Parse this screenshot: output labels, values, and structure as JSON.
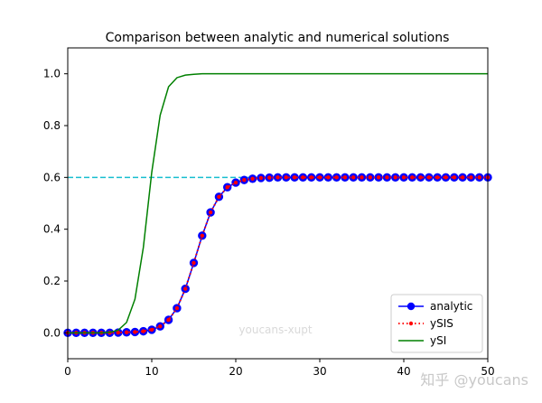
{
  "chart_data": {
    "type": "line",
    "title": "Comparison between analytic and numerical solutions",
    "xlabel": "",
    "ylabel": "",
    "xlim": [
      0,
      50
    ],
    "ylim": [
      -0.1,
      1.1
    ],
    "x_ticks": [
      0,
      10,
      20,
      30,
      40,
      50
    ],
    "x_tick_labels": [
      "0",
      "10",
      "20",
      "30",
      "40",
      "50"
    ],
    "y_ticks": [
      0.0,
      0.2,
      0.4,
      0.6,
      0.8,
      1.0
    ],
    "y_tick_labels": [
      "0.0",
      "0.2",
      "0.4",
      "0.6",
      "0.8",
      "1.0"
    ],
    "grid": false,
    "legend_position": "lower-right",
    "reference_line": {
      "y": 0.6,
      "color": "#17becf",
      "style": "dashed"
    },
    "series": [
      {
        "name": "analytic",
        "color": "#0000ff",
        "style": "solid-with-circle-markers",
        "x": [
          0,
          1,
          2,
          3,
          4,
          5,
          6,
          7,
          8,
          9,
          10,
          11,
          12,
          13,
          14,
          15,
          16,
          17,
          18,
          19,
          20,
          21,
          22,
          23,
          24,
          25,
          26,
          27,
          28,
          29,
          30,
          31,
          32,
          33,
          34,
          35,
          36,
          37,
          38,
          39,
          40,
          41,
          42,
          43,
          44,
          45,
          46,
          47,
          48,
          49,
          50
        ],
        "y": [
          0.0,
          0.0,
          0.0,
          0.0,
          0.0,
          0.0,
          0.001,
          0.002,
          0.003,
          0.006,
          0.012,
          0.025,
          0.05,
          0.095,
          0.17,
          0.27,
          0.375,
          0.465,
          0.525,
          0.562,
          0.58,
          0.59,
          0.595,
          0.598,
          0.599,
          0.6,
          0.6,
          0.6,
          0.6,
          0.6,
          0.6,
          0.6,
          0.6,
          0.6,
          0.6,
          0.6,
          0.6,
          0.6,
          0.6,
          0.6,
          0.6,
          0.6,
          0.6,
          0.6,
          0.6,
          0.6,
          0.6,
          0.6,
          0.6,
          0.6,
          0.6
        ]
      },
      {
        "name": "ySIS",
        "color": "#ff0000",
        "style": "dotted-with-small-markers",
        "x": [
          0,
          1,
          2,
          3,
          4,
          5,
          6,
          7,
          8,
          9,
          10,
          11,
          12,
          13,
          14,
          15,
          16,
          17,
          18,
          19,
          20,
          21,
          22,
          23,
          24,
          25,
          26,
          27,
          28,
          29,
          30,
          31,
          32,
          33,
          34,
          35,
          36,
          37,
          38,
          39,
          40,
          41,
          42,
          43,
          44,
          45,
          46,
          47,
          48,
          49,
          50
        ],
        "y": [
          0.0,
          0.0,
          0.0,
          0.0,
          0.0,
          0.0,
          0.001,
          0.002,
          0.003,
          0.006,
          0.012,
          0.025,
          0.05,
          0.095,
          0.17,
          0.27,
          0.375,
          0.465,
          0.525,
          0.562,
          0.58,
          0.59,
          0.595,
          0.598,
          0.599,
          0.6,
          0.6,
          0.6,
          0.6,
          0.6,
          0.6,
          0.6,
          0.6,
          0.6,
          0.6,
          0.6,
          0.6,
          0.6,
          0.6,
          0.6,
          0.6,
          0.6,
          0.6,
          0.6,
          0.6,
          0.6,
          0.6,
          0.6,
          0.6,
          0.6,
          0.6
        ]
      },
      {
        "name": "ySI",
        "color": "#008000",
        "style": "solid",
        "x": [
          0,
          1,
          2,
          3,
          4,
          5,
          6,
          7,
          8,
          9,
          10,
          11,
          12,
          13,
          14,
          15,
          16,
          17,
          18,
          19,
          20,
          21,
          22,
          23,
          24,
          25,
          26,
          27,
          28,
          29,
          30,
          31,
          32,
          33,
          34,
          35,
          36,
          37,
          38,
          39,
          40,
          41,
          42,
          43,
          44,
          45,
          46,
          47,
          48,
          49,
          50
        ],
        "y": [
          0.0,
          0.0,
          0.0,
          0.0,
          0.0,
          0.002,
          0.01,
          0.04,
          0.13,
          0.33,
          0.62,
          0.84,
          0.95,
          0.985,
          0.995,
          0.998,
          1.0,
          1.0,
          1.0,
          1.0,
          1.0,
          1.0,
          1.0,
          1.0,
          1.0,
          1.0,
          1.0,
          1.0,
          1.0,
          1.0,
          1.0,
          1.0,
          1.0,
          1.0,
          1.0,
          1.0,
          1.0,
          1.0,
          1.0,
          1.0,
          1.0,
          1.0,
          1.0,
          1.0,
          1.0,
          1.0,
          1.0,
          1.0,
          1.0,
          1.0,
          1.0
        ]
      }
    ]
  },
  "watermarks": {
    "center": "youcans-xupt",
    "corner": "知乎 @youcans"
  }
}
